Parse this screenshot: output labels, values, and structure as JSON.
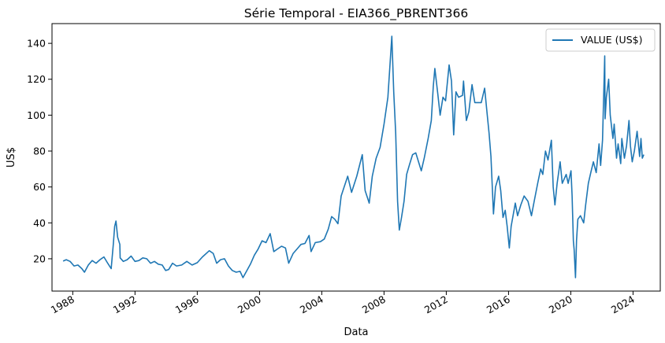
{
  "chart_data": {
    "type": "line",
    "title": "Série Temporal - EIA366_PBRENT366",
    "xlabel": "Data",
    "ylabel": "US$",
    "legend": {
      "placement": "top-right",
      "entries": [
        "VALUE (US$)"
      ]
    },
    "grid": false,
    "x_range": [
      "1986-09-01",
      "2025-10-01"
    ],
    "ylim": [
      2,
      151
    ],
    "x_ticks": [
      "1988",
      "1992",
      "1996",
      "2000",
      "2004",
      "2008",
      "2012",
      "2016",
      "2020",
      "2024"
    ],
    "y_ticks": [
      20,
      40,
      60,
      80,
      100,
      120,
      140
    ],
    "series_color": "#1f77b4",
    "series": [
      {
        "name": "VALUE (US$)",
        "x": [
          "1987-05-20",
          "1987-08-01",
          "1987-11-01",
          "1988-02-01",
          "1988-05-01",
          "1988-08-01",
          "1988-10-01",
          "1989-01-01",
          "1989-04-01",
          "1989-07-01",
          "1989-10-01",
          "1990-01-01",
          "1990-04-01",
          "1990-06-20",
          "1990-08-10",
          "1990-09-10",
          "1990-10-11",
          "1990-11-20",
          "1991-01-10",
          "1991-01-18",
          "1991-04-01",
          "1991-07-01",
          "1991-10-01",
          "1992-01-01",
          "1992-04-01",
          "1992-07-01",
          "1992-10-01",
          "1993-01-01",
          "1993-04-01",
          "1993-07-01",
          "1993-10-01",
          "1993-12-20",
          "1994-03-01",
          "1994-06-01",
          "1994-09-01",
          "1995-01-01",
          "1995-05-01",
          "1995-09-01",
          "1996-01-01",
          "1996-05-01",
          "1996-10-08",
          "1997-01-10",
          "1997-04-01",
          "1997-07-01",
          "1997-10-01",
          "1998-01-01",
          "1998-04-01",
          "1998-07-01",
          "1998-10-01",
          "1998-12-10",
          "1999-03-01",
          "1999-06-01",
          "1999-09-01",
          "1999-12-01",
          "2000-03-01",
          "2000-06-01",
          "2000-09-07",
          "2000-12-01",
          "2001-03-01",
          "2001-06-01",
          "2001-09-01",
          "2001-11-15",
          "2002-03-01",
          "2002-06-01",
          "2002-09-01",
          "2002-12-01",
          "2003-03-10",
          "2003-04-25",
          "2003-08-01",
          "2003-12-01",
          "2004-03-01",
          "2004-06-01",
          "2004-08-20",
          "2004-11-01",
          "2005-01-15",
          "2005-04-01",
          "2005-09-01",
          "2005-12-01",
          "2006-04-01",
          "2006-08-08",
          "2006-10-15",
          "2007-01-18",
          "2007-04-01",
          "2007-07-01",
          "2007-10-01",
          "2008-01-01",
          "2008-04-01",
          "2008-07-03",
          "2008-08-15",
          "2008-10-01",
          "2008-11-15",
          "2008-12-24",
          "2009-02-15",
          "2009-04-15",
          "2009-06-15",
          "2009-08-15",
          "2009-11-01",
          "2010-01-15",
          "2010-05-25",
          "2010-08-01",
          "2010-11-01",
          "2011-01-15",
          "2011-03-01",
          "2011-04-08",
          "2011-06-15",
          "2011-08-10",
          "2011-10-15",
          "2011-12-15",
          "2012-03-08",
          "2012-05-01",
          "2012-06-22",
          "2012-08-15",
          "2012-10-15",
          "2013-01-15",
          "2013-02-08",
          "2013-04-17",
          "2013-06-15",
          "2013-08-28",
          "2013-11-01",
          "2014-01-15",
          "2014-04-01",
          "2014-06-19",
          "2014-08-15",
          "2014-10-01",
          "2014-11-15",
          "2015-01-13",
          "2015-03-01",
          "2015-05-15",
          "2015-07-01",
          "2015-08-24",
          "2015-10-15",
          "2015-12-01",
          "2016-01-20",
          "2016-03-01",
          "2016-06-08",
          "2016-08-01",
          "2016-10-15",
          "2017-01-01",
          "2017-04-01",
          "2017-06-21",
          "2017-09-01",
          "2017-11-15",
          "2018-01-25",
          "2018-03-15",
          "2018-05-17",
          "2018-07-15",
          "2018-10-03",
          "2018-11-15",
          "2018-12-24",
          "2019-02-15",
          "2019-04-25",
          "2019-06-15",
          "2019-09-16",
          "2019-11-01",
          "2020-01-06",
          "2020-02-01",
          "2020-03-01",
          "2020-03-20",
          "2020-04-21",
          "2020-05-15",
          "2020-06-15",
          "2020-08-15",
          "2020-10-30",
          "2020-12-15",
          "2021-02-15",
          "2021-04-15",
          "2021-06-15",
          "2021-08-20",
          "2021-10-25",
          "2021-12-01",
          "2022-01-15",
          "2022-03-08",
          "2022-03-16",
          "2022-04-15",
          "2022-06-08",
          "2022-07-15",
          "2022-09-15",
          "2022-10-15",
          "2022-12-09",
          "2023-01-15",
          "2023-03-17",
          "2023-04-12",
          "2023-06-12",
          "2023-08-01",
          "2023-09-27",
          "2023-11-01",
          "2023-12-12",
          "2024-02-01",
          "2024-04-05",
          "2024-06-04",
          "2024-07-05",
          "2024-08-05",
          "2024-09-10"
        ],
        "values": [
          18.7,
          19.5,
          18.5,
          16.0,
          16.5,
          14.5,
          12.5,
          16.5,
          19.0,
          17.5,
          19.5,
          21.0,
          17.5,
          14.5,
          28.0,
          38.0,
          41.0,
          32.0,
          28.0,
          20.5,
          18.5,
          19.5,
          21.5,
          18.5,
          19.0,
          20.5,
          20.0,
          17.5,
          18.5,
          17.0,
          16.5,
          13.5,
          14.0,
          17.5,
          16.0,
          16.5,
          18.5,
          16.5,
          17.8,
          21.0,
          24.5,
          23.0,
          17.5,
          19.5,
          20.0,
          16.0,
          13.5,
          12.5,
          13.0,
          9.5,
          13.0,
          17.0,
          22.0,
          25.5,
          30.0,
          29.0,
          34.0,
          24.0,
          25.5,
          27.0,
          26.0,
          17.5,
          23.0,
          25.5,
          28.0,
          28.5,
          33.0,
          24.0,
          29.0,
          29.5,
          31.0,
          36.5,
          43.5,
          42.0,
          39.5,
          55.0,
          66.0,
          57.0,
          66.0,
          78.0,
          58.0,
          51.0,
          66.0,
          76.0,
          82.0,
          95.0,
          110.0,
          144.0,
          113.0,
          90.0,
          52.0,
          36.0,
          43.0,
          52.0,
          67.0,
          72.0,
          78.0,
          79.0,
          69.0,
          76.0,
          87.0,
          97.0,
          116.0,
          126.0,
          112.0,
          100.0,
          110.0,
          108.0,
          128.0,
          119.0,
          89.0,
          113.0,
          110.0,
          111.0,
          119.0,
          97.0,
          102.0,
          117.0,
          107.0,
          107.0,
          107.0,
          115.0,
          101.0,
          90.0,
          77.0,
          45.0,
          60.0,
          66.0,
          58.0,
          43.0,
          47.0,
          38.0,
          26.0,
          38.0,
          51.0,
          44.0,
          50.0,
          55.0,
          52.0,
          44.0,
          53.0,
          62.0,
          70.0,
          67.0,
          80.0,
          75.0,
          86.0,
          60.0,
          50.0,
          62.0,
          74.0,
          62.0,
          67.0,
          62.0,
          69.0,
          55.0,
          30.0,
          25.0,
          9.5,
          30.0,
          42.0,
          44.0,
          40.0,
          50.0,
          62.0,
          68.0,
          74.0,
          68.0,
          84.0,
          72.0,
          86.0,
          133.0,
          98.0,
          110.0,
          120.0,
          100.0,
          87.0,
          95.0,
          76.0,
          84.0,
          73.0,
          87.0,
          76.0,
          83.0,
          97.0,
          83.0,
          74.0,
          80.0,
          91.0,
          77.0,
          87.0,
          76.0,
          78.0
        ]
      }
    ]
  }
}
